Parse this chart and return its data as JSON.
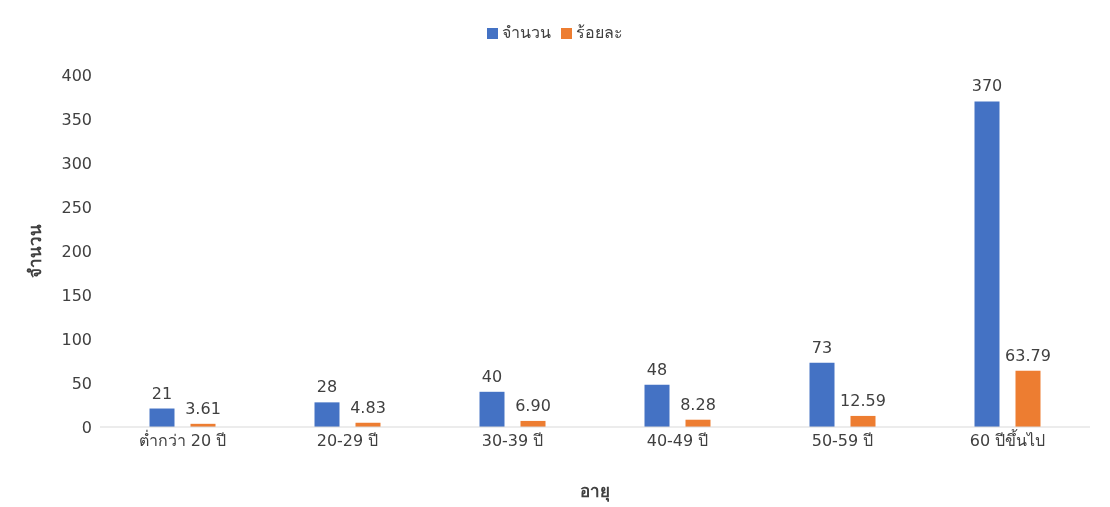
{
  "chart_data": {
    "type": "bar",
    "xlabel": "อายุ",
    "ylabel": "จำนวน",
    "categories": [
      "ต่ำกว่า 20 ปี",
      "20-29 ปี",
      "30-39 ปี",
      "40-49 ปี",
      "50-59 ปี",
      "60 ปีขึ้นไป"
    ],
    "series": [
      {
        "name": "จำนวน",
        "color": "#4472c4",
        "values": [
          21,
          28,
          40,
          48,
          73,
          370
        ],
        "value_labels": [
          "21",
          "28",
          "40",
          "48",
          "73",
          "370"
        ]
      },
      {
        "name": "ร้อยละ",
        "color": "#ed7d31",
        "values": [
          3.61,
          4.83,
          6.9,
          8.28,
          12.59,
          63.79
        ],
        "value_labels": [
          "3.61",
          "4.83",
          "6.90",
          "8.28",
          "12.59",
          "63.79"
        ]
      }
    ],
    "ylim": [
      0,
      400
    ],
    "yticks": [
      0,
      50,
      100,
      150,
      200,
      250,
      300,
      350,
      400
    ],
    "legend": "top"
  }
}
